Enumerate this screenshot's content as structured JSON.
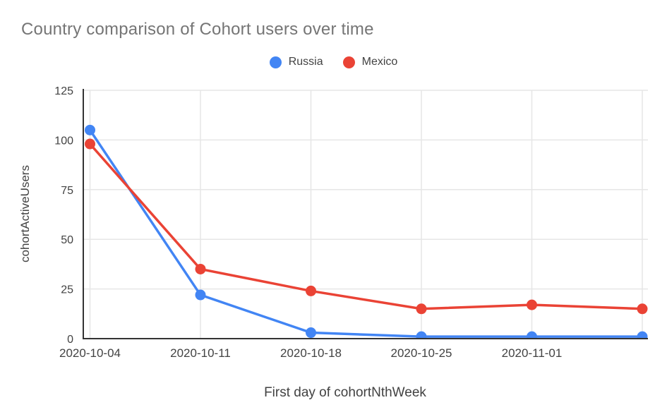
{
  "chart_data": {
    "type": "line",
    "title": "Country comparison of Cohort users over time",
    "xlabel": "First day of cohortNthWeek",
    "ylabel": "cohortActiveUsers",
    "x_tick_labels": [
      "2020-10-04",
      "2020-10-11",
      "2020-10-18",
      "2020-10-25",
      "2020-11-01",
      ""
    ],
    "num_points": 6,
    "y_ticks": [
      0,
      25,
      50,
      75,
      100,
      125
    ],
    "ylim": [
      0,
      125
    ],
    "grid": true,
    "legend_position": "top",
    "series": [
      {
        "name": "Russia",
        "color": "#4285F4",
        "values": [
          105,
          22,
          3,
          1,
          1,
          1
        ]
      },
      {
        "name": "Mexico",
        "color": "#EA4335",
        "values": [
          98,
          35,
          24,
          15,
          17,
          15
        ]
      }
    ]
  },
  "colors": {
    "title_text": "#757575",
    "tick_text": "#424242",
    "axis_title_text": "#424242",
    "gridline": "#e6e6e6",
    "axis_line": "#333333",
    "background": "#ffffff"
  }
}
